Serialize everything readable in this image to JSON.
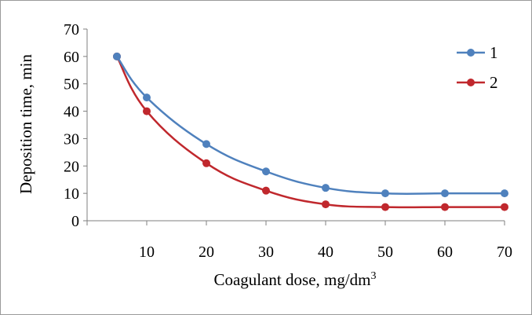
{
  "chart_data": {
    "type": "line",
    "xlabel": "Coagulant dose, mg/dm",
    "xlabel_superscript": "3",
    "ylabel": "Deposition time, min",
    "xlim": [
      0,
      70
    ],
    "ylim": [
      0,
      70
    ],
    "xticks": [
      "10",
      "20",
      "30",
      "40",
      "50",
      "60",
      "70"
    ],
    "yticks": [
      "0",
      "10",
      "20",
      "30",
      "40",
      "50",
      "60",
      "70"
    ],
    "grid": false,
    "legend_position": "top-right",
    "series": [
      {
        "name": "1",
        "color": "#4f81bd",
        "x": [
          5,
          10,
          20,
          30,
          40,
          50,
          60,
          70
        ],
        "y": [
          60,
          45,
          28,
          18,
          12,
          10,
          10,
          10
        ]
      },
      {
        "name": "2",
        "color": "#c0282d",
        "x": [
          5,
          10,
          20,
          30,
          40,
          50,
          60,
          70
        ],
        "y": [
          60,
          40,
          21,
          11,
          6,
          5,
          5,
          5
        ]
      }
    ]
  }
}
